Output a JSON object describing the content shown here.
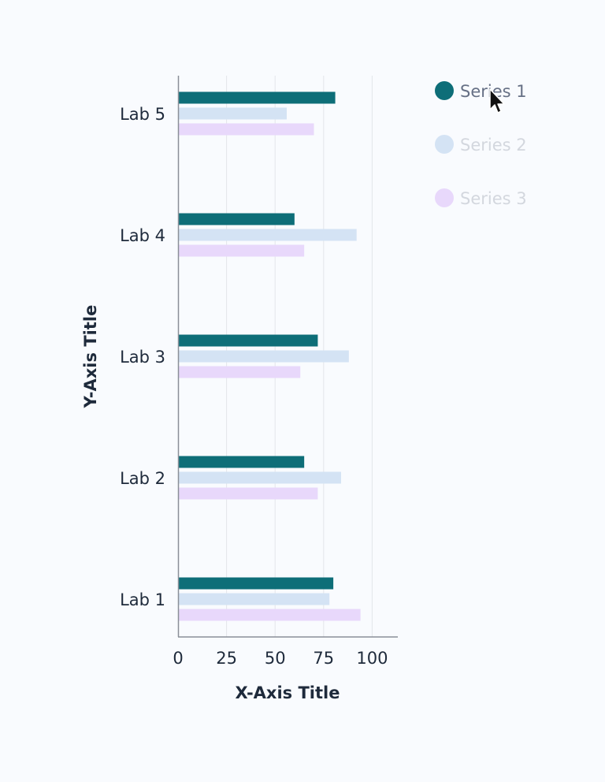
{
  "chart_data": {
    "type": "bar",
    "orientation": "horizontal",
    "title": "",
    "xlabel": "X-Axis Title",
    "ylabel": "Y-Axis Title",
    "xlim": [
      0,
      113
    ],
    "xticks": [
      0,
      25,
      50,
      75,
      100
    ],
    "grid": true,
    "legend_position": "top-right",
    "categories": [
      "Lab 1",
      "Lab 2",
      "Lab 3",
      "Lab 4",
      "Lab 5"
    ],
    "series": [
      {
        "name": "Series 1",
        "color": "#0e6e78",
        "values": [
          80,
          65,
          72,
          60,
          81
        ]
      },
      {
        "name": "Series 2",
        "color": "#d4e3f4",
        "values": [
          78,
          84,
          88,
          92,
          56
        ]
      },
      {
        "name": "Series 3",
        "color": "#e8d8fb",
        "values": [
          94,
          72,
          63,
          65,
          70
        ]
      }
    ],
    "legend_active": "Series 1",
    "legend_inactive_text_color": "#d3d7de",
    "legend_active_text_color": "#667085"
  }
}
